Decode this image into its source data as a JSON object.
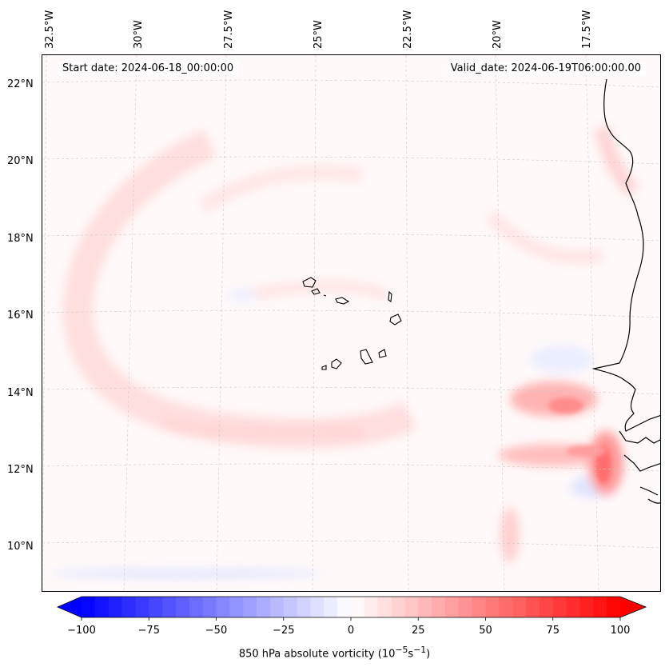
{
  "header": {
    "start_date": "Start date: 2024-06-18_00:00:00",
    "valid_date": "Valid_date: 2024-06-19T06:00:00.00"
  },
  "axes": {
    "lon_ticks": [
      "32.5°W",
      "30°W",
      "27.5°W",
      "25°W",
      "22.5°W",
      "20°W",
      "17.5°W"
    ],
    "lat_ticks": [
      "22°N",
      "20°N",
      "18°N",
      "16°N",
      "14°N",
      "12°N",
      "10°N"
    ]
  },
  "colorbar": {
    "ticks": [
      "−100",
      "−75",
      "−50",
      "−25",
      "0",
      "25",
      "50",
      "75",
      "100"
    ],
    "label": "850 hPa absolute vorticity (10",
    "label_exp1": "−5",
    "label_mid": "s",
    "label_exp2": "−1",
    "label_end": ")",
    "min": -100,
    "max": 100,
    "levels": 40,
    "cmap": "bwr",
    "extend": "both"
  },
  "map": {
    "field": "850 hPa absolute vorticity",
    "region_lon": [
      -33,
      -15.5
    ],
    "region_lat": [
      9,
      22.8
    ],
    "gridlines": true,
    "coastline_color": "#000000",
    "low_color": "#0000ff",
    "mid_color": "#ffffff",
    "high_color": "#ff0000"
  }
}
